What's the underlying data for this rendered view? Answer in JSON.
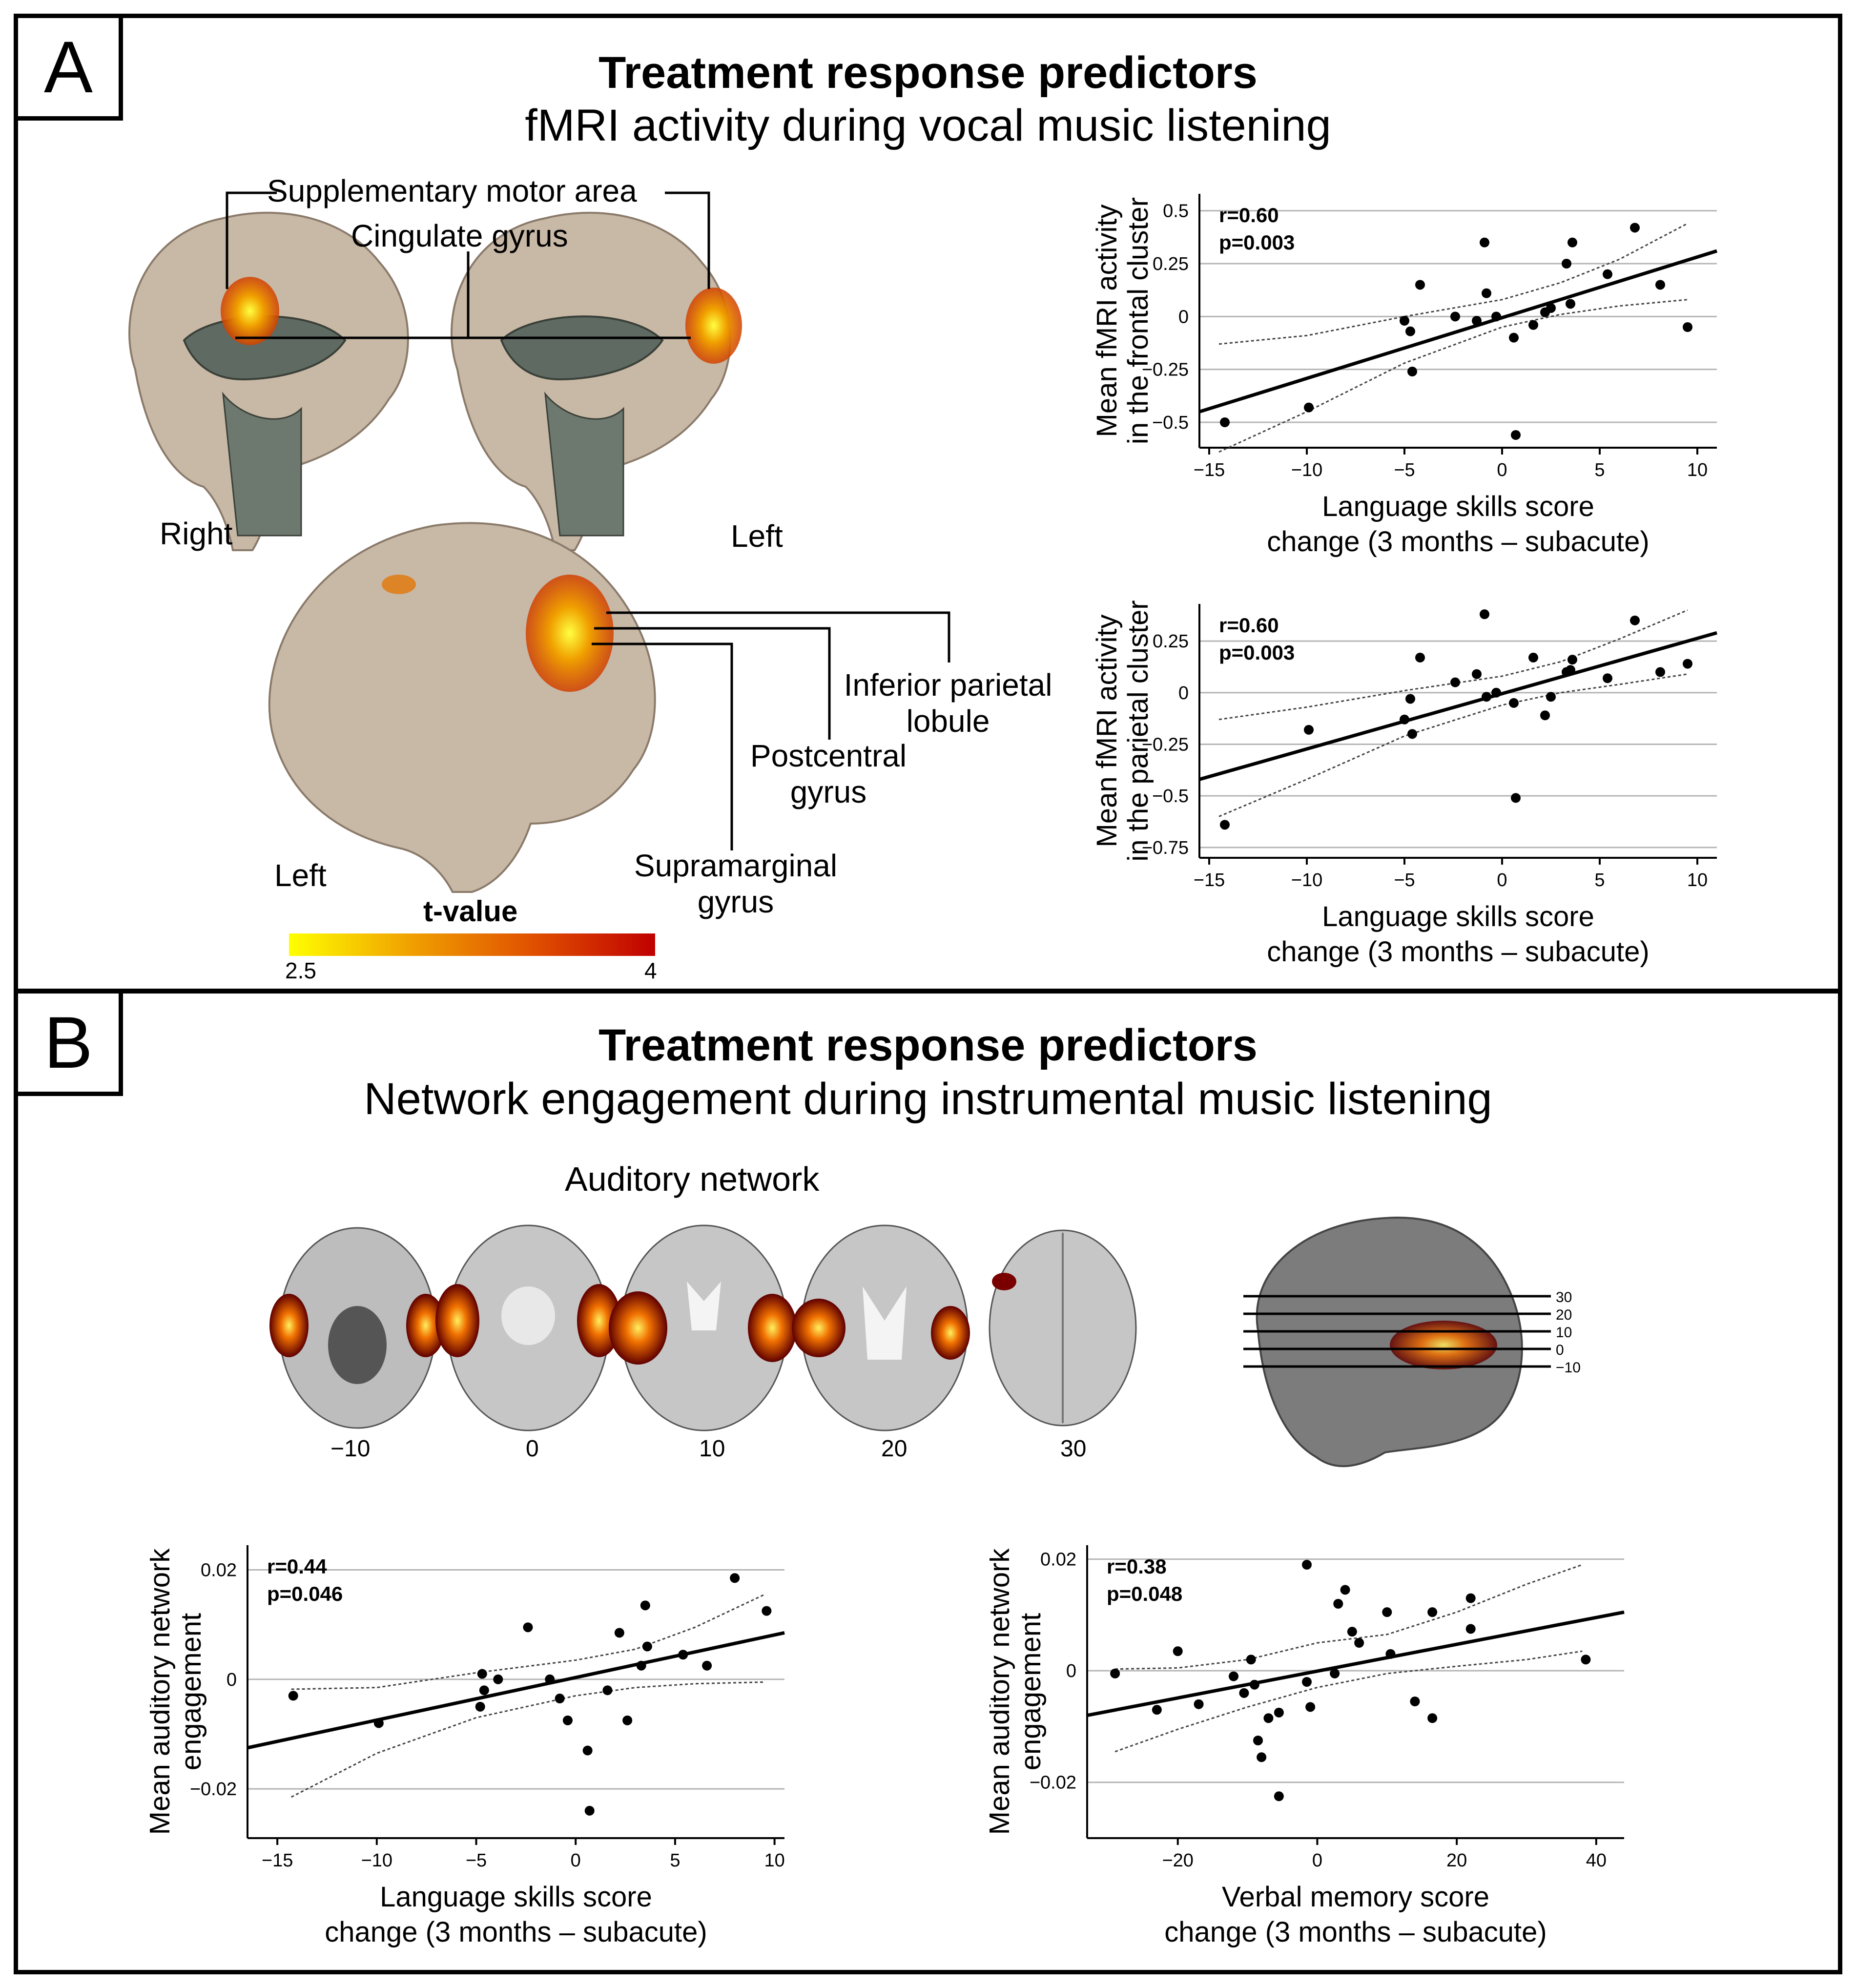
{
  "panelA": {
    "letter": "A",
    "title": "Treatment response predictors",
    "subtitle": "fMRI activity during vocal music listening",
    "labels": {
      "sma": "Supplementary motor area",
      "cingulate": "Cingulate gyrus",
      "right": "Right",
      "left_top": "Left",
      "left_bottom": "Left",
      "ipl_1": "Inferior parietal",
      "ipl_2": "lobule",
      "post_1": "Postcentral",
      "post_2": "gyrus",
      "supra_1": "Supramarginal",
      "supra_2": "gyrus"
    },
    "colorbar": {
      "title": "t-value",
      "min": "2.5",
      "max": "4",
      "colors": [
        "#ffff00",
        "#f0a000",
        "#e05000",
        "#c00000"
      ]
    }
  },
  "panelB": {
    "letter": "B",
    "title": "Treatment response predictors",
    "subtitle": "Network engagement during instrumental music listening",
    "network_label": "Auditory network",
    "slice_labels": [
      "−10",
      "0",
      "10",
      "20",
      "30"
    ],
    "slice_marks": [
      "30",
      "20",
      "10",
      "0",
      "−10"
    ]
  },
  "chart_data": [
    {
      "id": "chartA1",
      "type": "scatter",
      "ylabel": [
        "Mean fMRI activity",
        "in the frontal cluster"
      ],
      "xlabel": [
        "Language skills score",
        "change (3 months – subacute)"
      ],
      "stat_r": "r=0.60",
      "stat_p": "p=0.003",
      "xlim": [
        -15.5,
        11
      ],
      "ylim": [
        -0.62,
        0.58
      ],
      "xticks": [
        -15,
        -10,
        -5,
        0,
        5,
        10
      ],
      "xticklabels": [
        "−15",
        "−10",
        "−5",
        "0",
        "5",
        "10"
      ],
      "yticks": [
        -0.5,
        -0.25,
        0,
        0.25,
        0.5
      ],
      "yticklabels": [
        "−0.5",
        "−0.25",
        "0",
        "0.25",
        "0.5"
      ],
      "points": [
        [
          -14.2,
          -0.5
        ],
        [
          -9.9,
          -0.43
        ],
        [
          -4.6,
          -0.26
        ],
        [
          -4.7,
          -0.07
        ],
        [
          -5.0,
          -0.02
        ],
        [
          -4.2,
          0.15
        ],
        [
          -2.4,
          0.0
        ],
        [
          -1.3,
          -0.02
        ],
        [
          -0.9,
          0.35
        ],
        [
          -0.8,
          0.11
        ],
        [
          -0.3,
          0.0
        ],
        [
          0.6,
          -0.1
        ],
        [
          0.7,
          -0.56
        ],
        [
          1.6,
          -0.04
        ],
        [
          2.2,
          0.02
        ],
        [
          2.5,
          0.04
        ],
        [
          3.3,
          0.25
        ],
        [
          3.5,
          0.06
        ],
        [
          3.6,
          0.35
        ],
        [
          5.4,
          0.2
        ],
        [
          6.8,
          0.42
        ],
        [
          8.1,
          0.15
        ],
        [
          9.5,
          -0.05
        ]
      ],
      "fit": [
        [
          -15.5,
          -0.45
        ],
        [
          11,
          0.31
        ]
      ],
      "ci_upper": [
        [
          -14.5,
          -0.13
        ],
        [
          -10,
          -0.09
        ],
        [
          -5,
          0.0
        ],
        [
          0,
          0.08
        ],
        [
          3,
          0.16
        ],
        [
          6,
          0.27
        ],
        [
          9.5,
          0.44
        ]
      ],
      "ci_lower": [
        [
          -14.5,
          -0.64
        ],
        [
          -10,
          -0.45
        ],
        [
          -5,
          -0.22
        ],
        [
          0,
          -0.05
        ],
        [
          3,
          0.01
        ],
        [
          6,
          0.05
        ],
        [
          9.5,
          0.08
        ]
      ]
    },
    {
      "id": "chartA2",
      "type": "scatter",
      "ylabel": [
        "Mean fMRI activity",
        "in the parietal cluster"
      ],
      "xlabel": [
        "Language skills score",
        "change (3 months – subacute)"
      ],
      "stat_r": "r=0.60",
      "stat_p": "p=0.003",
      "xlim": [
        -15.5,
        11
      ],
      "ylim": [
        -0.8,
        0.43
      ],
      "xticks": [
        -15,
        -10,
        -5,
        0,
        5,
        10
      ],
      "xticklabels": [
        "−15",
        "−10",
        "−5",
        "0",
        "5",
        "10"
      ],
      "yticks": [
        -0.75,
        -0.5,
        -0.25,
        0,
        0.25
      ],
      "yticklabels": [
        "−0.75",
        "−0.5",
        "−0.25",
        "0",
        "0.25"
      ],
      "points": [
        [
          -14.2,
          -0.64
        ],
        [
          -9.9,
          -0.18
        ],
        [
          -4.6,
          -0.2
        ],
        [
          -4.7,
          -0.03
        ],
        [
          -5.0,
          -0.13
        ],
        [
          -4.2,
          0.17
        ],
        [
          -2.4,
          0.05
        ],
        [
          -1.3,
          0.09
        ],
        [
          -0.9,
          0.38
        ],
        [
          -0.8,
          -0.02
        ],
        [
          -0.3,
          0.0
        ],
        [
          0.6,
          -0.05
        ],
        [
          0.7,
          -0.51
        ],
        [
          1.6,
          0.17
        ],
        [
          2.2,
          -0.11
        ],
        [
          2.5,
          -0.02
        ],
        [
          3.3,
          0.1
        ],
        [
          3.5,
          0.11
        ],
        [
          3.6,
          0.16
        ],
        [
          5.4,
          0.07
        ],
        [
          6.8,
          0.35
        ],
        [
          8.1,
          0.1
        ],
        [
          9.5,
          0.14
        ]
      ],
      "fit": [
        [
          -15.5,
          -0.42
        ],
        [
          11,
          0.29
        ]
      ],
      "ci_upper": [
        [
          -14.5,
          -0.13
        ],
        [
          -10,
          -0.07
        ],
        [
          -5,
          0.01
        ],
        [
          0,
          0.08
        ],
        [
          3,
          0.15
        ],
        [
          6,
          0.26
        ],
        [
          9.5,
          0.4
        ]
      ],
      "ci_lower": [
        [
          -14.5,
          -0.6
        ],
        [
          -10,
          -0.42
        ],
        [
          -5,
          -0.21
        ],
        [
          0,
          -0.06
        ],
        [
          3,
          0.0
        ],
        [
          6,
          0.04
        ],
        [
          9.5,
          0.09
        ]
      ]
    },
    {
      "id": "chartB1",
      "type": "scatter",
      "ylabel": [
        "Mean auditory network",
        "engagement"
      ],
      "xlabel": [
        "Language skills score",
        "change (3 months – subacute)"
      ],
      "stat_r": "r=0.44",
      "stat_p": "p=0.046",
      "xlim": [
        -16.5,
        10.5
      ],
      "ylim": [
        -0.029,
        0.0245
      ],
      "xticks": [
        -15,
        -10,
        -5,
        0,
        5,
        10
      ],
      "xticklabels": [
        "−15",
        "−10",
        "−5",
        "0",
        "5",
        "10"
      ],
      "yticks": [
        -0.02,
        0,
        0.02
      ],
      "yticklabels": [
        "−0.02",
        "0",
        "0.02"
      ],
      "points": [
        [
          -14.2,
          -0.003
        ],
        [
          -9.9,
          -0.008
        ],
        [
          -4.8,
          -0.005
        ],
        [
          -4.7,
          0.001
        ],
        [
          -4.6,
          -0.002
        ],
        [
          -3.9,
          0.0
        ],
        [
          -2.4,
          0.0095
        ],
        [
          -1.3,
          0.0
        ],
        [
          -0.8,
          -0.0035
        ],
        [
          -0.4,
          -0.0075
        ],
        [
          0.6,
          -0.013
        ],
        [
          0.7,
          -0.024
        ],
        [
          1.6,
          -0.002
        ],
        [
          2.2,
          0.0085
        ],
        [
          2.6,
          -0.0075
        ],
        [
          3.3,
          0.0025
        ],
        [
          3.5,
          0.0135
        ],
        [
          3.6,
          0.006
        ],
        [
          5.4,
          0.0045
        ],
        [
          6.6,
          0.0025
        ],
        [
          8.0,
          0.0185
        ],
        [
          9.6,
          0.0125
        ]
      ],
      "fit": [
        [
          -16.5,
          -0.0125
        ],
        [
          10.5,
          0.0085
        ]
      ],
      "ci_upper": [
        [
          -14.3,
          -0.0018
        ],
        [
          -10,
          -0.0015
        ],
        [
          -5,
          0.0012
        ],
        [
          0,
          0.0035
        ],
        [
          3,
          0.0055
        ],
        [
          6,
          0.0095
        ],
        [
          9.5,
          0.0155
        ]
      ],
      "ci_lower": [
        [
          -14.3,
          -0.0215
        ],
        [
          -10,
          -0.0135
        ],
        [
          -5,
          -0.007
        ],
        [
          0,
          -0.003
        ],
        [
          3,
          -0.0015
        ],
        [
          6,
          -0.0008
        ],
        [
          9.5,
          -0.0005
        ]
      ]
    },
    {
      "id": "chartB2",
      "type": "scatter",
      "ylabel": [
        "Mean auditory network",
        "engagement"
      ],
      "xlabel": [
        "Verbal memory score",
        "change (3 months – subacute)"
      ],
      "stat_r": "r=0.38",
      "stat_p": "p=0.048",
      "xlim": [
        -33,
        44
      ],
      "ylim": [
        -0.03,
        0.0225
      ],
      "xticks": [
        -20,
        0,
        20,
        40
      ],
      "xticklabels": [
        "−20",
        "0",
        "20",
        "40"
      ],
      "yticks": [
        -0.02,
        0,
        0.02
      ],
      "yticklabels": [
        "−0.02",
        "0",
        "0.02"
      ],
      "points": [
        [
          -29,
          -0.0005
        ],
        [
          -23,
          -0.007
        ],
        [
          -20,
          0.0035
        ],
        [
          -17,
          -0.006
        ],
        [
          -12,
          -0.001
        ],
        [
          -10.5,
          -0.004
        ],
        [
          -9.5,
          0.002
        ],
        [
          -9,
          -0.0025
        ],
        [
          -8.5,
          -0.0125
        ],
        [
          -8,
          -0.0155
        ],
        [
          -7,
          -0.0085
        ],
        [
          -5.5,
          -0.0075
        ],
        [
          -5.5,
          -0.0225
        ],
        [
          -1.5,
          0.019
        ],
        [
          -1.5,
          -0.002
        ],
        [
          -1,
          -0.0065
        ],
        [
          2.5,
          -0.0005
        ],
        [
          3,
          0.012
        ],
        [
          4,
          0.0145
        ],
        [
          5,
          0.007
        ],
        [
          6,
          0.005
        ],
        [
          10,
          0.0105
        ],
        [
          10.5,
          0.003
        ],
        [
          14,
          -0.0055
        ],
        [
          16.5,
          -0.0085
        ],
        [
          16.5,
          0.0105
        ],
        [
          22,
          0.0075
        ],
        [
          22,
          0.013
        ],
        [
          38.5,
          0.002
        ]
      ],
      "fit": [
        [
          -33,
          -0.008
        ],
        [
          44,
          0.0105
        ]
      ],
      "ci_upper": [
        [
          -29,
          0.0003
        ],
        [
          -20,
          0.0005
        ],
        [
          -10,
          0.002
        ],
        [
          0,
          0.005
        ],
        [
          10,
          0.0065
        ],
        [
          20,
          0.0105
        ],
        [
          30,
          0.0155
        ],
        [
          38,
          0.019
        ]
      ],
      "ci_lower": [
        [
          -29,
          -0.0145
        ],
        [
          -20,
          -0.0105
        ],
        [
          -10,
          -0.0065
        ],
        [
          0,
          -0.003
        ],
        [
          10,
          -0.0005
        ],
        [
          20,
          0.0008
        ],
        [
          30,
          0.002
        ],
        [
          38,
          0.0035
        ]
      ]
    }
  ]
}
